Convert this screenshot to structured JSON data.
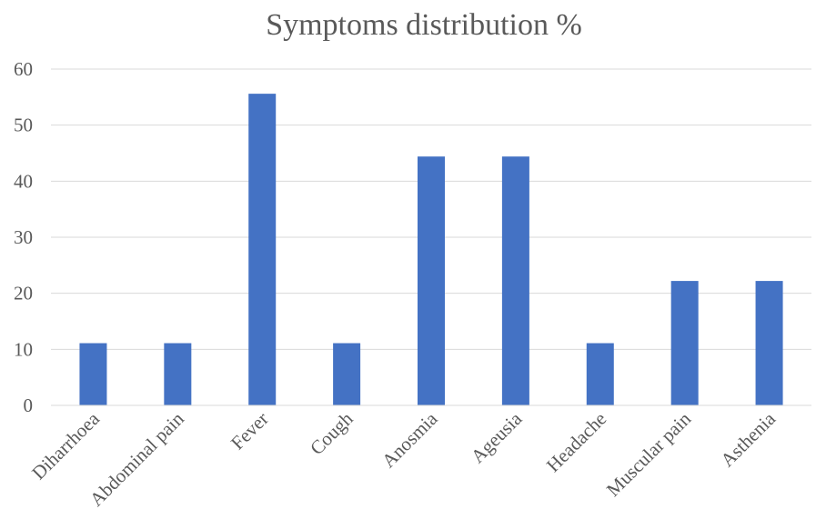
{
  "chart_data": {
    "type": "bar",
    "title": "Symptoms distribution %",
    "xlabel": "",
    "ylabel": "",
    "categories": [
      "Diharrhoea",
      "Abdominal pain",
      "Fever",
      "Cough",
      "Anosmia",
      "Ageusia",
      "Headache",
      "Muscular pain",
      "Asthenia"
    ],
    "values": [
      11.1,
      11.1,
      55.6,
      11.1,
      44.4,
      44.4,
      11.1,
      22.2,
      22.2
    ],
    "ylim": [
      0,
      60
    ],
    "yticks": [
      0,
      10,
      20,
      30,
      40,
      50,
      60
    ],
    "grid": true,
    "legend": "none",
    "bar_color": "#4472C4",
    "text_color": "#595959",
    "grid_color": "#D9D9D9"
  }
}
